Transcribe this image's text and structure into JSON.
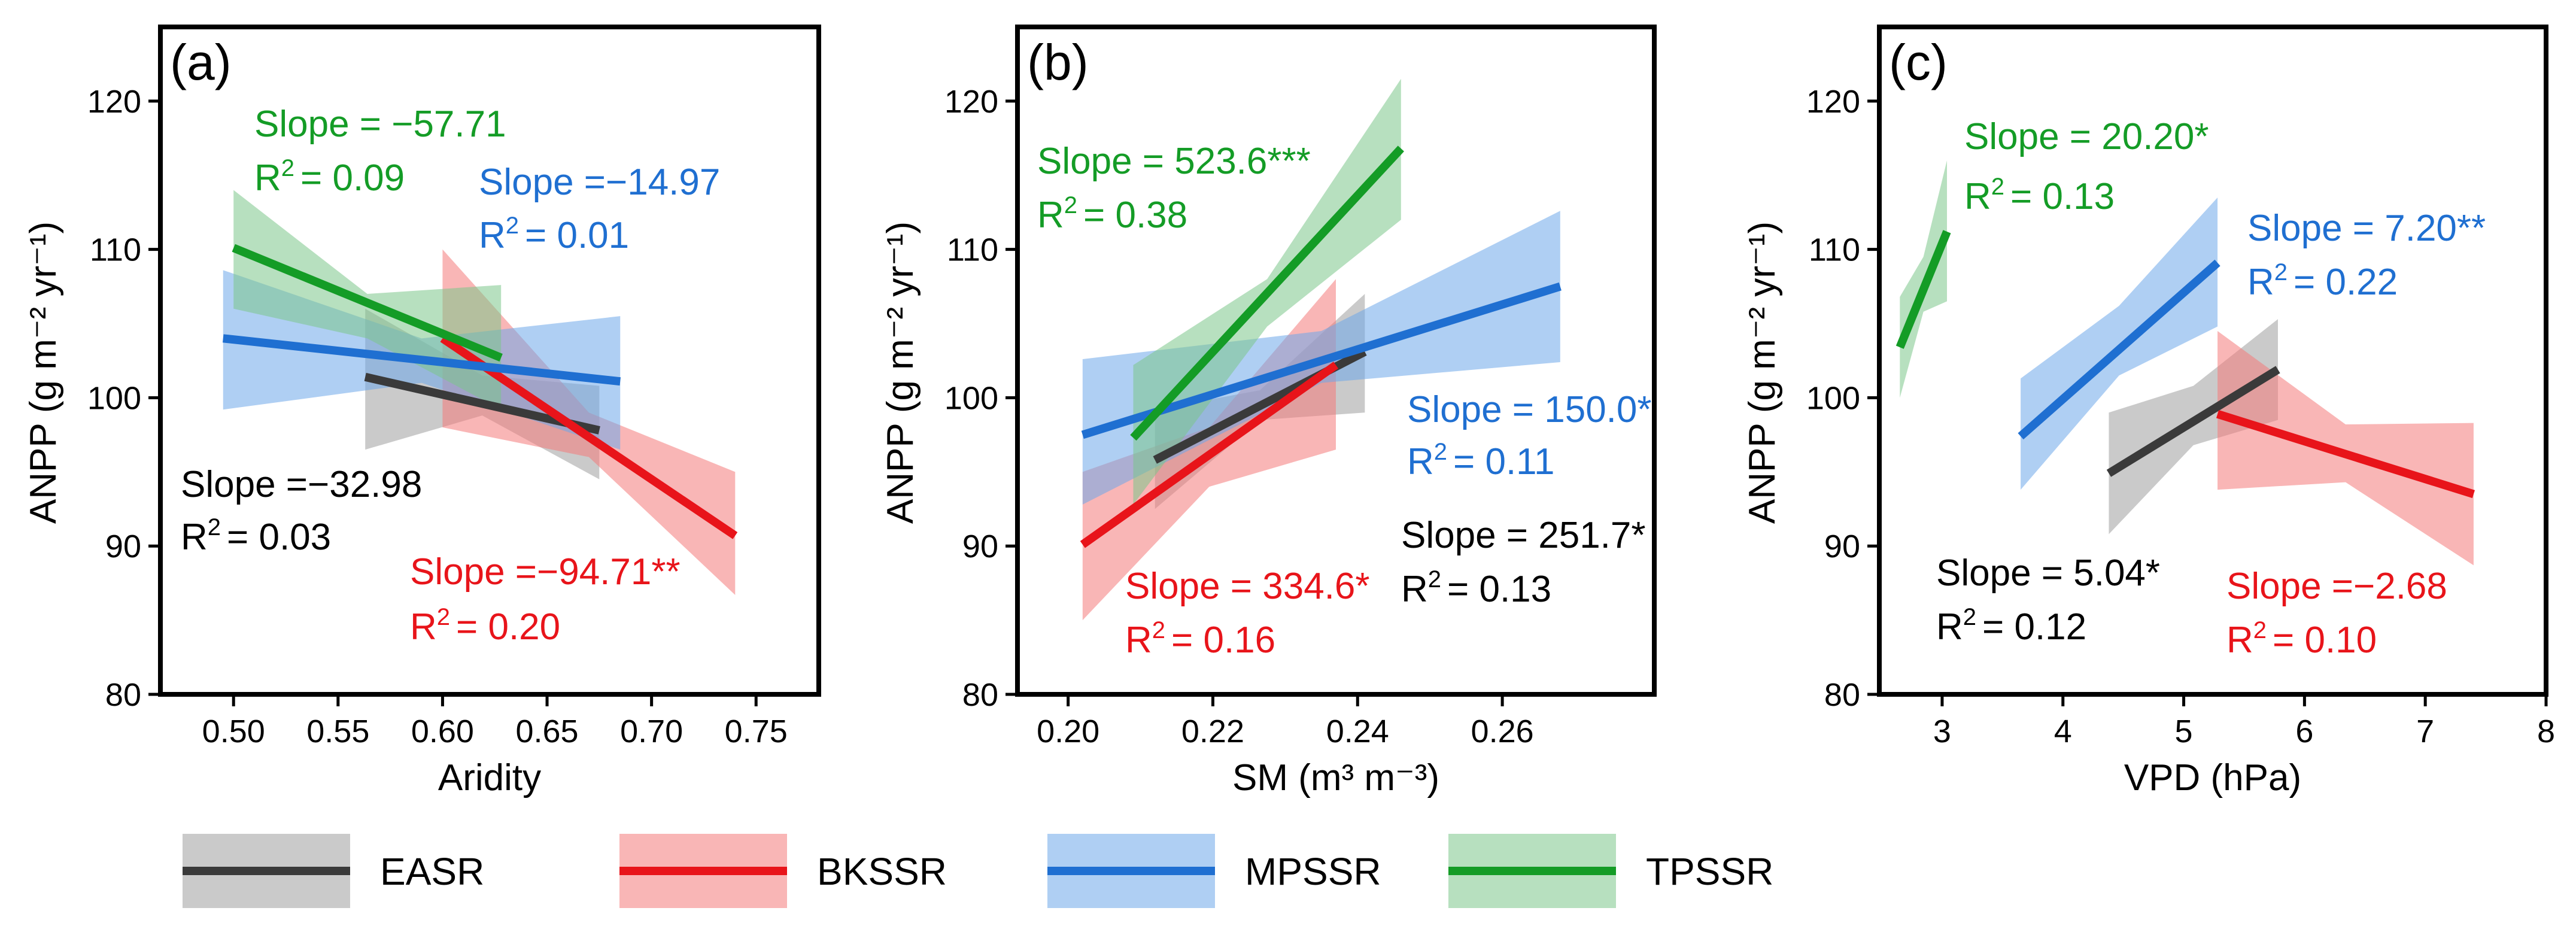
{
  "groups": [
    {
      "key": "EASR",
      "label": "EASR",
      "line_color": "#3a3a3a",
      "band_color": "#9e9e9e"
    },
    {
      "key": "BKSSR",
      "label": "BKSSR",
      "line_color": "#e8141a",
      "band_color": "#f47a7a"
    },
    {
      "key": "MPSSR",
      "label": "MPSSR",
      "line_color": "#1f6fd1",
      "band_color": "#6ea7ea"
    },
    {
      "key": "TPSSR",
      "label": "TPSSR",
      "line_color": "#149c26",
      "band_color": "#7cc78a"
    }
  ],
  "chart_data": [
    {
      "type": "line",
      "panel_label": "(a)",
      "xlabel": "Aridity",
      "ylabel": "ANPP (g m⁻² yr⁻¹)",
      "xlim": [
        0.465,
        0.78
      ],
      "ylim": [
        80,
        125
      ],
      "xticks": [
        0.5,
        0.55,
        0.6,
        0.65,
        0.7,
        0.75
      ],
      "xtick_labels": [
        "0.50",
        "0.55",
        "0.60",
        "0.65",
        "0.70",
        "0.75"
      ],
      "yticks": [
        80,
        90,
        100,
        110,
        120
      ],
      "ytick_labels": [
        "80",
        "90",
        "100",
        "110",
        "120"
      ],
      "series": [
        {
          "name": "EASR",
          "x": [
            0.563,
            0.675
          ],
          "y": [
            101.4,
            97.8
          ],
          "band_x": [
            0.563,
            0.619,
            0.675
          ],
          "band_lo": [
            96.5,
            98.8,
            94.5
          ],
          "band_hi": [
            106.0,
            101.5,
            100.8
          ]
        },
        {
          "name": "BKSSR",
          "x": [
            0.6,
            0.74
          ],
          "y": [
            104.0,
            90.7
          ],
          "band_x": [
            0.6,
            0.67,
            0.74
          ],
          "band_lo": [
            98.0,
            96.0,
            86.7
          ],
          "band_hi": [
            110.0,
            99.0,
            95.0
          ]
        },
        {
          "name": "MPSSR",
          "x": [
            0.495,
            0.685
          ],
          "y": [
            104.0,
            101.1
          ],
          "band_x": [
            0.495,
            0.59,
            0.685
          ],
          "band_lo": [
            99.2,
            101.0,
            96.5
          ],
          "band_hi": [
            108.6,
            104.0,
            105.5
          ]
        },
        {
          "name": "TPSSR",
          "x": [
            0.5,
            0.628
          ],
          "y": [
            110.1,
            102.7
          ],
          "band_x": [
            0.5,
            0.564,
            0.628
          ],
          "band_lo": [
            106.0,
            104.0,
            99.2
          ],
          "band_hi": [
            114.0,
            107.0,
            107.6
          ]
        }
      ],
      "annotations": [
        {
          "group": "TPSSR",
          "slope": "Slope = −57.71",
          "r2_value": "= 0.09"
        },
        {
          "group": "MPSSR",
          "slope": "Slope =−14.97",
          "r2_value": "= 0.01"
        },
        {
          "group": "EASR",
          "slope": "Slope =−32.98",
          "r2_value": "= 0.03"
        },
        {
          "group": "BKSSR",
          "slope": "Slope =−94.71**",
          "r2_value": "= 0.20"
        }
      ]
    },
    {
      "type": "line",
      "panel_label": "(b)",
      "xlabel": "SM (m³ m⁻³)",
      "ylabel": "ANPP (g m⁻² yr⁻¹)",
      "xlim": [
        0.193,
        0.281
      ],
      "ylim": [
        80,
        125
      ],
      "xticks": [
        0.2,
        0.22,
        0.24,
        0.26
      ],
      "xtick_labels": [
        "0.20",
        "0.22",
        "0.24",
        "0.26"
      ],
      "yticks": [
        80,
        90,
        100,
        110,
        120
      ],
      "ytick_labels": [
        "80",
        "90",
        "100",
        "110",
        "120"
      ],
      "series": [
        {
          "name": "EASR",
          "x": [
            0.212,
            0.241
          ],
          "y": [
            95.8,
            103.1
          ],
          "band_x": [
            0.212,
            0.2265,
            0.241
          ],
          "band_lo": [
            92.5,
            98.5,
            99.0
          ],
          "band_hi": [
            99.2,
            100.5,
            107.0
          ]
        },
        {
          "name": "BKSSR",
          "x": [
            0.202,
            0.237
          ],
          "y": [
            90.1,
            102.2
          ],
          "band_x": [
            0.202,
            0.2195,
            0.237
          ],
          "band_lo": [
            85.0,
            94.0,
            96.5
          ],
          "band_hi": [
            95.0,
            98.0,
            108.0
          ]
        },
        {
          "name": "MPSSR",
          "x": [
            0.202,
            0.268
          ],
          "y": [
            97.5,
            107.5
          ],
          "band_x": [
            0.202,
            0.235,
            0.268
          ],
          "band_lo": [
            92.8,
            101.0,
            102.4
          ],
          "band_hi": [
            102.6,
            104.5,
            112.6
          ]
        },
        {
          "name": "TPSSR",
          "x": [
            0.209,
            0.246
          ],
          "y": [
            97.3,
            116.8
          ],
          "band_x": [
            0.209,
            0.2275,
            0.246
          ],
          "band_lo": [
            92.8,
            104.8,
            112.0
          ],
          "band_hi": [
            102.2,
            108.0,
            121.5
          ]
        }
      ],
      "annotations": [
        {
          "group": "TPSSR",
          "slope": "Slope = 523.6***",
          "r2_value": "= 0.38"
        },
        {
          "group": "MPSSR",
          "slope": "Slope = 150.0*",
          "r2_value": "= 0.11"
        },
        {
          "group": "EASR",
          "slope": "Slope = 251.7*",
          "r2_value": "= 0.13"
        },
        {
          "group": "BKSSR",
          "slope": "Slope = 334.6*",
          "r2_value": "= 0.16"
        }
      ]
    },
    {
      "type": "line",
      "panel_label": "(c)",
      "xlabel": "VPD (hPa)",
      "ylabel": "ANPP (g m⁻² yr⁻¹)",
      "xlim": [
        2.48,
        8.0
      ],
      "ylim": [
        80,
        125
      ],
      "xticks": [
        3,
        4,
        5,
        6,
        7,
        8
      ],
      "xtick_labels": [
        "3",
        "4",
        "5",
        "6",
        "7",
        "8"
      ],
      "yticks": [
        80,
        90,
        100,
        110,
        120
      ],
      "ytick_labels": [
        "80",
        "90",
        "100",
        "110",
        "120"
      ],
      "series": [
        {
          "name": "EASR",
          "x": [
            4.38,
            5.78
          ],
          "y": [
            94.9,
            101.9
          ],
          "band_x": [
            4.38,
            5.08,
            5.78
          ],
          "band_lo": [
            90.8,
            96.8,
            98.5
          ],
          "band_hi": [
            99.0,
            100.8,
            105.3
          ]
        },
        {
          "name": "BKSSR",
          "x": [
            5.28,
            7.4
          ],
          "y": [
            98.9,
            93.5
          ],
          "band_x": [
            5.28,
            6.34,
            7.4
          ],
          "band_lo": [
            93.8,
            94.3,
            88.7
          ],
          "band_hi": [
            104.5,
            98.2,
            98.3
          ]
        },
        {
          "name": "MPSSR",
          "x": [
            3.65,
            5.28
          ],
          "y": [
            97.4,
            109.1
          ],
          "band_x": [
            3.65,
            4.465,
            5.28
          ],
          "band_lo": [
            93.8,
            101.5,
            104.8
          ],
          "band_hi": [
            101.3,
            106.2,
            113.5
          ]
        },
        {
          "name": "TPSSR",
          "x": [
            2.65,
            3.04
          ],
          "y": [
            103.4,
            111.2
          ],
          "band_x": [
            2.65,
            2.845,
            3.04
          ],
          "band_lo": [
            100.0,
            105.8,
            106.5
          ],
          "band_hi": [
            106.8,
            109.5,
            116.0
          ]
        }
      ],
      "annotations": [
        {
          "group": "TPSSR",
          "slope": "Slope = 20.20*",
          "r2_value": "= 0.13"
        },
        {
          "group": "MPSSR",
          "slope": "Slope = 7.20**",
          "r2_value": "= 0.22"
        },
        {
          "group": "EASR",
          "slope": "Slope = 5.04*",
          "r2_value": "= 0.12"
        },
        {
          "group": "BKSSR",
          "slope": "Slope =−2.68",
          "r2_value": "= 0.10"
        }
      ]
    }
  ]
}
